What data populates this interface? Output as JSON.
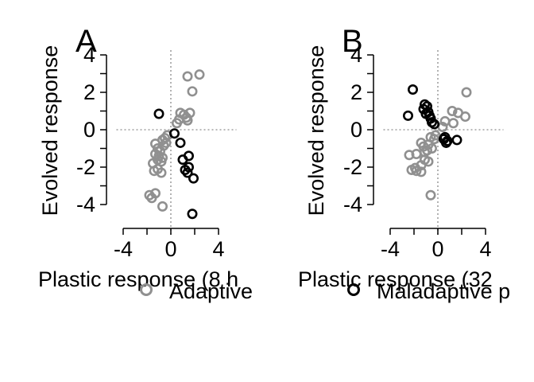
{
  "colors": {
    "adaptive": "#909090",
    "maladaptive": "#000000",
    "axis": "#000000",
    "reference_line": "#a0a0a0"
  },
  "legend": {
    "placement": "bottom",
    "items": [
      {
        "label": "Adaptive",
        "color": "#909090",
        "marker": "open-circle"
      },
      {
        "label": "Maladaptive p",
        "color": "#000000",
        "marker": "open-circle"
      }
    ]
  },
  "chart_data": [
    {
      "type": "scatter",
      "panel_label": "A",
      "xlabel": "Plastic response (8 h",
      "ylabel": "Evolved response",
      "xlim": [
        -4.3,
        5.5
      ],
      "ylim": [
        -5.2,
        4.0
      ],
      "xticks": [
        "-4",
        "0",
        "4"
      ],
      "yticks": [
        "-4",
        "-2",
        "0",
        "2",
        "4"
      ],
      "xtick_values": [
        -4,
        0,
        4
      ],
      "ytick_values": [
        -4,
        -2,
        0,
        2,
        4
      ],
      "reference_lines": {
        "x": 0,
        "y": 0,
        "style": "dotted"
      },
      "grid": false,
      "series": [
        {
          "name": "Adaptive",
          "color": "#909090",
          "points": [
            [
              1.4,
              2.85
            ],
            [
              2.4,
              2.95
            ],
            [
              1.8,
              2.05
            ],
            [
              0.8,
              0.9
            ],
            [
              1.1,
              0.8
            ],
            [
              1.6,
              0.9
            ],
            [
              0.7,
              0.55
            ],
            [
              1.3,
              0.65
            ],
            [
              1.4,
              0.5
            ],
            [
              0.5,
              0.35
            ],
            [
              -0.3,
              -0.3
            ],
            [
              -0.5,
              -0.45
            ],
            [
              -0.7,
              -0.55
            ],
            [
              -0.4,
              -0.7
            ],
            [
              -0.6,
              -0.85
            ],
            [
              -1.3,
              -0.75
            ],
            [
              -1.1,
              -1.0
            ],
            [
              -0.9,
              -1.15
            ],
            [
              -1.3,
              -1.3
            ],
            [
              -1.0,
              -1.4
            ],
            [
              -0.7,
              -1.5
            ],
            [
              -1.1,
              -1.6
            ],
            [
              -0.8,
              -1.7
            ],
            [
              -1.5,
              -1.8
            ],
            [
              -1.1,
              -2.1
            ],
            [
              -1.4,
              -2.2
            ],
            [
              -0.8,
              -2.3
            ],
            [
              -1.3,
              -3.4
            ],
            [
              -1.8,
              -3.5
            ],
            [
              -1.6,
              -3.65
            ],
            [
              -0.7,
              -4.1
            ]
          ]
        },
        {
          "name": "Maladaptive p",
          "color": "#000000",
          "points": [
            [
              -1.0,
              0.85
            ],
            [
              0.3,
              -0.2
            ],
            [
              0.8,
              -0.7
            ],
            [
              1.5,
              -1.4
            ],
            [
              1.0,
              -1.6
            ],
            [
              1.5,
              -2.0
            ],
            [
              1.2,
              -2.15
            ],
            [
              1.4,
              -2.3
            ],
            [
              1.9,
              -2.6
            ],
            [
              1.8,
              -4.5
            ]
          ]
        }
      ]
    },
    {
      "type": "scatter",
      "panel_label": "B",
      "xlabel": "Plastic response (32",
      "ylabel": "Evolved response",
      "xlim": [
        -4.3,
        5.5
      ],
      "ylim": [
        -5.2,
        4.0
      ],
      "xticks": [
        "-4",
        "0",
        "4"
      ],
      "yticks": [
        "-4",
        "-2",
        "0",
        "2",
        "4"
      ],
      "xtick_values": [
        -4,
        0,
        4
      ],
      "ytick_values": [
        -4,
        -2,
        0,
        2,
        4
      ],
      "reference_lines": {
        "x": 0,
        "y": 0,
        "style": "dotted"
      },
      "grid": false,
      "series": [
        {
          "name": "Adaptive",
          "color": "#909090",
          "points": [
            [
              2.4,
              2.0
            ],
            [
              1.2,
              1.0
            ],
            [
              1.7,
              0.9
            ],
            [
              2.3,
              0.7
            ],
            [
              0.6,
              0.45
            ],
            [
              1.3,
              0.35
            ],
            [
              0.4,
              0.15
            ],
            [
              -0.2,
              -0.3
            ],
            [
              -0.6,
              -0.4
            ],
            [
              -0.3,
              -0.5
            ],
            [
              -1.4,
              -0.7
            ],
            [
              -0.8,
              -0.8
            ],
            [
              -1.2,
              -0.9
            ],
            [
              -0.5,
              -1.0
            ],
            [
              -0.9,
              -1.1
            ],
            [
              -1.1,
              -1.2
            ],
            [
              -1.8,
              -1.3
            ],
            [
              -2.4,
              -1.35
            ],
            [
              -1.1,
              -1.6
            ],
            [
              -0.8,
              -1.7
            ],
            [
              -1.4,
              -1.9
            ],
            [
              -1.9,
              -2.05
            ],
            [
              -2.2,
              -2.15
            ],
            [
              -1.8,
              -2.2
            ],
            [
              -1.4,
              -2.25
            ],
            [
              -0.6,
              -3.5
            ]
          ]
        },
        {
          "name": "Maladaptive p",
          "color": "#000000",
          "points": [
            [
              -2.1,
              2.15
            ],
            [
              -1.1,
              1.35
            ],
            [
              -0.9,
              1.25
            ],
            [
              -1.2,
              1.1
            ],
            [
              -0.8,
              0.95
            ],
            [
              -1.0,
              0.85
            ],
            [
              -0.7,
              0.75
            ],
            [
              -2.5,
              0.75
            ],
            [
              -0.6,
              0.6
            ],
            [
              -0.5,
              0.4
            ],
            [
              -0.3,
              0.3
            ],
            [
              0.6,
              -0.4
            ],
            [
              0.5,
              -0.5
            ],
            [
              0.8,
              -0.6
            ],
            [
              1.6,
              -0.55
            ],
            [
              0.7,
              -0.7
            ]
          ]
        }
      ]
    }
  ]
}
